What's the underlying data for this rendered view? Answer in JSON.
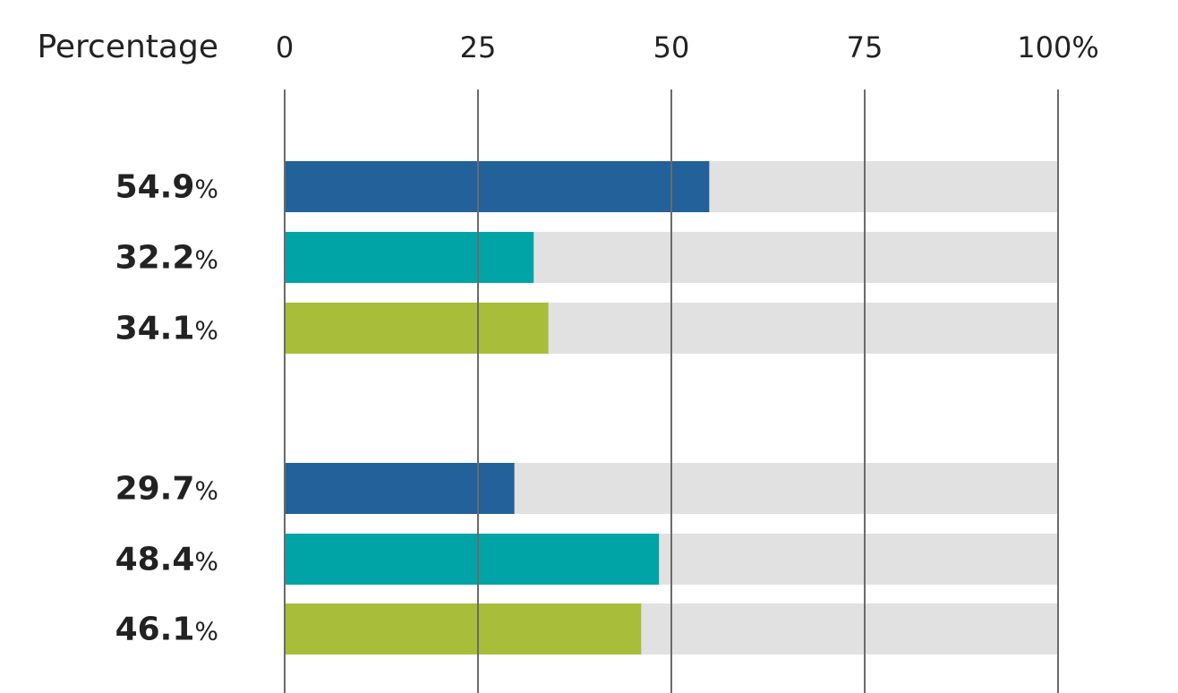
{
  "chart_data": {
    "type": "bar",
    "orientation": "horizontal",
    "axis_title": "Percentage",
    "tick_labels": [
      "0",
      "25",
      "50",
      "75",
      "100%"
    ],
    "ticks": [
      0,
      25,
      50,
      75,
      100
    ],
    "xlim": [
      0,
      100
    ],
    "grid": true,
    "background_track": true,
    "value_unit": "%",
    "groups": [
      {
        "bars": [
          {
            "value": 54.9,
            "label": "54.9",
            "color": "#22619a"
          },
          {
            "value": 32.2,
            "label": "32.2",
            "color": "#00a4a6"
          },
          {
            "value": 34.1,
            "label": "34.1",
            "color": "#a8bd3a"
          }
        ]
      },
      {
        "bars": [
          {
            "value": 29.7,
            "label": "29.7",
            "color": "#22619a"
          },
          {
            "value": 48.4,
            "label": "48.4",
            "color": "#00a4a6"
          },
          {
            "value": 46.1,
            "label": "46.1",
            "color": "#a8bd3a"
          }
        ]
      }
    ],
    "colors": {
      "track": "#e1e1e1",
      "grid": "#6b6b6b"
    }
  }
}
